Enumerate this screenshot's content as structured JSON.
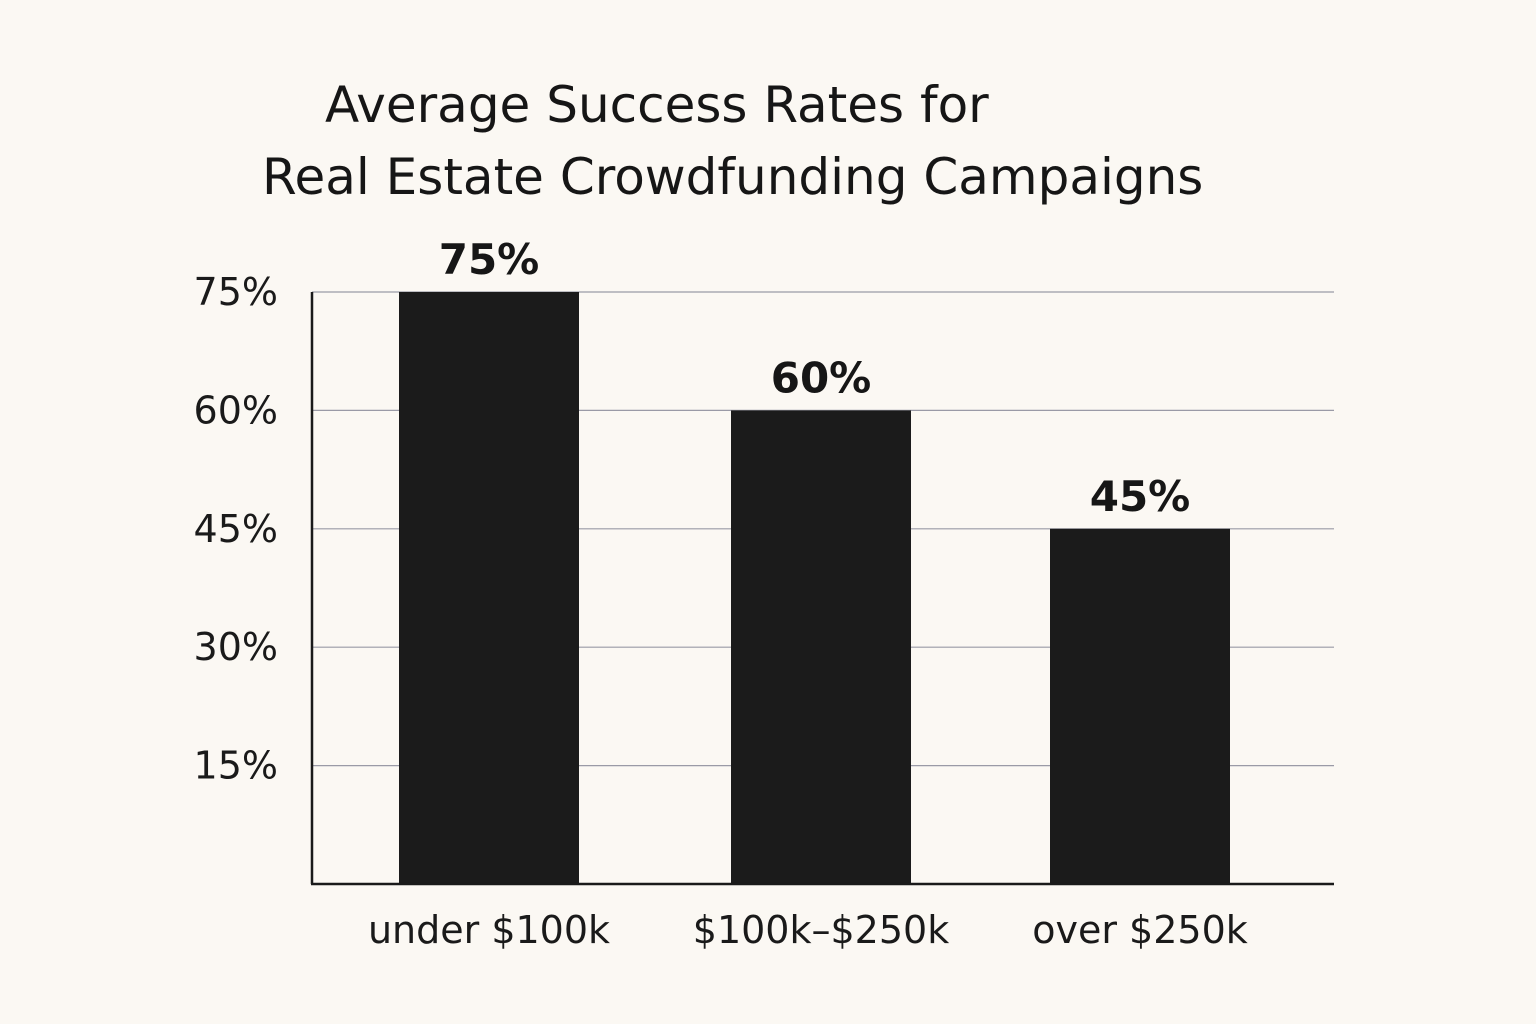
{
  "chart_data": {
    "type": "bar",
    "title_lines": [
      "Average Success Rates for",
      "Real Estate Crowdfunding Campaigns"
    ],
    "categories": [
      "under $100k",
      "$100k–$250k",
      "over $250k"
    ],
    "values": [
      75,
      60,
      45
    ],
    "data_labels": [
      "75%",
      "60%",
      "45%"
    ],
    "yticks": [
      15,
      30,
      45,
      60,
      75
    ],
    "ytick_labels": [
      "15%",
      "30%",
      "45%",
      "60%",
      "75%"
    ],
    "ylim": [
      0,
      75
    ],
    "xlabel": "",
    "ylabel": "",
    "grid": true,
    "colors": {
      "bar": "#1b1b1b",
      "grid": "#9a9aa6",
      "background": "#fbf8f3"
    }
  }
}
